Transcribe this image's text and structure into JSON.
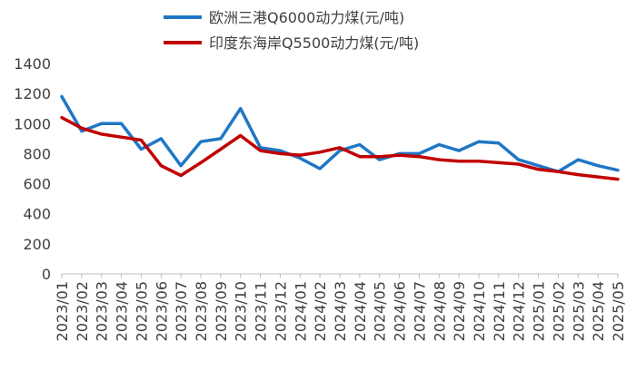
{
  "chart_data": {
    "type": "line",
    "title": "",
    "xlabel": "",
    "ylabel": "",
    "ylim": [
      0,
      1400
    ],
    "yticks": [
      0,
      200,
      400,
      600,
      800,
      1000,
      1200,
      1400
    ],
    "x_tick_labels": [
      "2023/01",
      "2023/02",
      "2023/03",
      "2023/04",
      "2023/05",
      "2023/06",
      "2023/07",
      "2023/08",
      "2023/09",
      "2023/10",
      "2023/11",
      "2023/12",
      "2024/01",
      "2024/02",
      "2024/03",
      "2024/04",
      "2024/05",
      "2024/06",
      "2024/07",
      "2024/08",
      "2024/09",
      "2024/10",
      "2024/11",
      "2024/12",
      "2025/01",
      "2025/02",
      "2025/03",
      "2025/04",
      "2025/05"
    ],
    "x": [
      "2023/01",
      "2023/02",
      "2023/03",
      "2023/04",
      "2023/05",
      "2023/06",
      "2023/07",
      "2023/08",
      "2023/09",
      "2023/10",
      "2023/11",
      "2023/12",
      "2024/01",
      "2024/02",
      "2024/03",
      "2024/04",
      "2024/05",
      "2024/06",
      "2024/07",
      "2024/08",
      "2024/09",
      "2024/10",
      "2024/11",
      "2024/12",
      "2025/01",
      "2025/02",
      "2025/03",
      "2025/04",
      "2025/05"
    ],
    "grid": false,
    "legend_position": "top-center",
    "series": [
      {
        "name": "欧洲三港Q6000动力煤(元/吨)",
        "color": "#1f77c4",
        "values": [
          1180,
          950,
          1000,
          1000,
          830,
          900,
          720,
          880,
          900,
          1100,
          840,
          820,
          770,
          700,
          820,
          860,
          760,
          800,
          800,
          860,
          820,
          880,
          870,
          760,
          720,
          680,
          760,
          720,
          690
        ]
      },
      {
        "name": "印度东海岸Q5500动力煤(元/吨)",
        "color": "#c00000",
        "values": [
          1040,
          970,
          930,
          910,
          890,
          720,
          655,
          740,
          830,
          920,
          820,
          800,
          790,
          810,
          840,
          780,
          780,
          790,
          780,
          760,
          750,
          750,
          740,
          730,
          695,
          680,
          660,
          645,
          630
        ]
      }
    ]
  },
  "legend": {
    "items": [
      {
        "label": "欧洲三港Q6000动力煤(元/吨)",
        "color": "#1f77c4"
      },
      {
        "label": "印度东海岸Q5500动力煤(元/吨)",
        "color": "#c00000"
      }
    ]
  }
}
